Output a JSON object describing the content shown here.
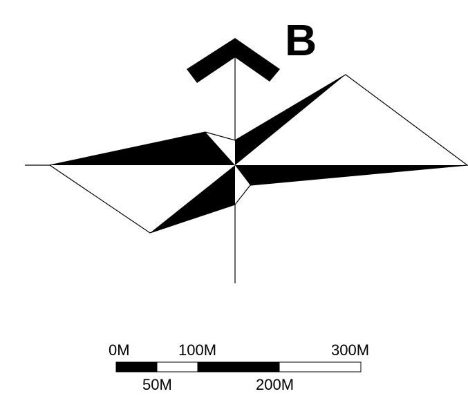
{
  "diagram": {
    "panel_label": "B",
    "north_arrow_icon": "north-arrow-icon",
    "colors": {
      "ink": "#000000",
      "paper": "#ffffff"
    },
    "scale_bar": {
      "top_labels": [
        "0M",
        "100M",
        "300M"
      ],
      "bottom_labels": [
        "50M",
        "200M"
      ],
      "segments": [
        {
          "from_m": 0,
          "to_m": 50,
          "fill": "black"
        },
        {
          "from_m": 50,
          "to_m": 100,
          "fill": "white"
        },
        {
          "from_m": 100,
          "to_m": 200,
          "fill": "black"
        },
        {
          "from_m": 200,
          "to_m": 300,
          "fill": "white"
        }
      ]
    }
  }
}
